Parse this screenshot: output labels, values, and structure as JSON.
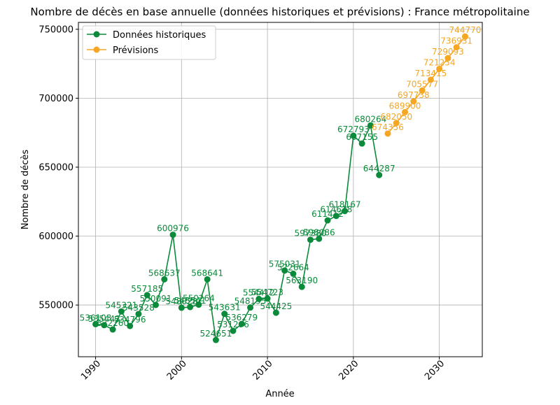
{
  "chart_data": {
    "type": "line",
    "title": "Nombre de décès en base annuelle (données historiques et prévisions) : France métropolitaine",
    "xlabel": "Année",
    "ylabel": "Nombre de décès",
    "xlim": [
      1988,
      2035
    ],
    "ylim": [
      512500,
      755000
    ],
    "grid": true,
    "legend_position": "top-left",
    "x_ticks": [
      1990,
      2000,
      2010,
      2020,
      2030
    ],
    "y_ticks": [
      550000,
      600000,
      650000,
      700000,
      750000
    ],
    "series": [
      {
        "name": "Données historiques",
        "color": "#0a8a3a",
        "x": [
          1990,
          1991,
          1992,
          1993,
          1994,
          1995,
          1996,
          1997,
          1998,
          1999,
          2000,
          2001,
          2002,
          2003,
          2004,
          2005,
          2006,
          2007,
          2008,
          2009,
          2010,
          2011,
          2012,
          2013,
          2014,
          2015,
          2016,
          2017,
          2018,
          2019,
          2020,
          2021,
          2022,
          2023
        ],
        "y": [
          536103,
          535443,
          532260,
          545321,
          534796,
          543528,
          557185,
          550091,
          568637,
          600976,
          548028,
          548541,
          550264,
          568641,
          524651,
          543631,
          531296,
          536279,
          548195,
          554412,
          554723,
          544425,
          575031,
          572664,
          563190,
          597380,
          598086,
          611412,
          614618,
          618167,
          672793,
          667155,
          680264,
          644287
        ],
        "labels": [
          "536103",
          "535443",
          "532260",
          "545321",
          "534796",
          "543528",
          "557185",
          "550091",
          "568637",
          "600976",
          "548028",
          "548541",
          "550264",
          "568641",
          "524651",
          "543631",
          "531296",
          "536279",
          "548195",
          "554412",
          "554723",
          "544425",
          "575031",
          "572664",
          "563190",
          "597380",
          "598086",
          "611412",
          "614618",
          "618167",
          "672793",
          "667155",
          "680264",
          "644287"
        ]
      },
      {
        "name": "Prévisions",
        "color": "#f5a623",
        "x": [
          2024,
          2025,
          2026,
          2027,
          2028,
          2029,
          2030,
          2031,
          2032,
          2033
        ],
        "y": [
          674356,
          682050,
          689900,
          697738,
          705577,
          713415,
          721254,
          729093,
          736931,
          744770
        ],
        "labels": [
          "674356",
          "682050",
          "689900",
          "697738",
          "705577",
          "713415",
          "721254",
          "729093",
          "736931",
          "744770"
        ]
      }
    ]
  }
}
